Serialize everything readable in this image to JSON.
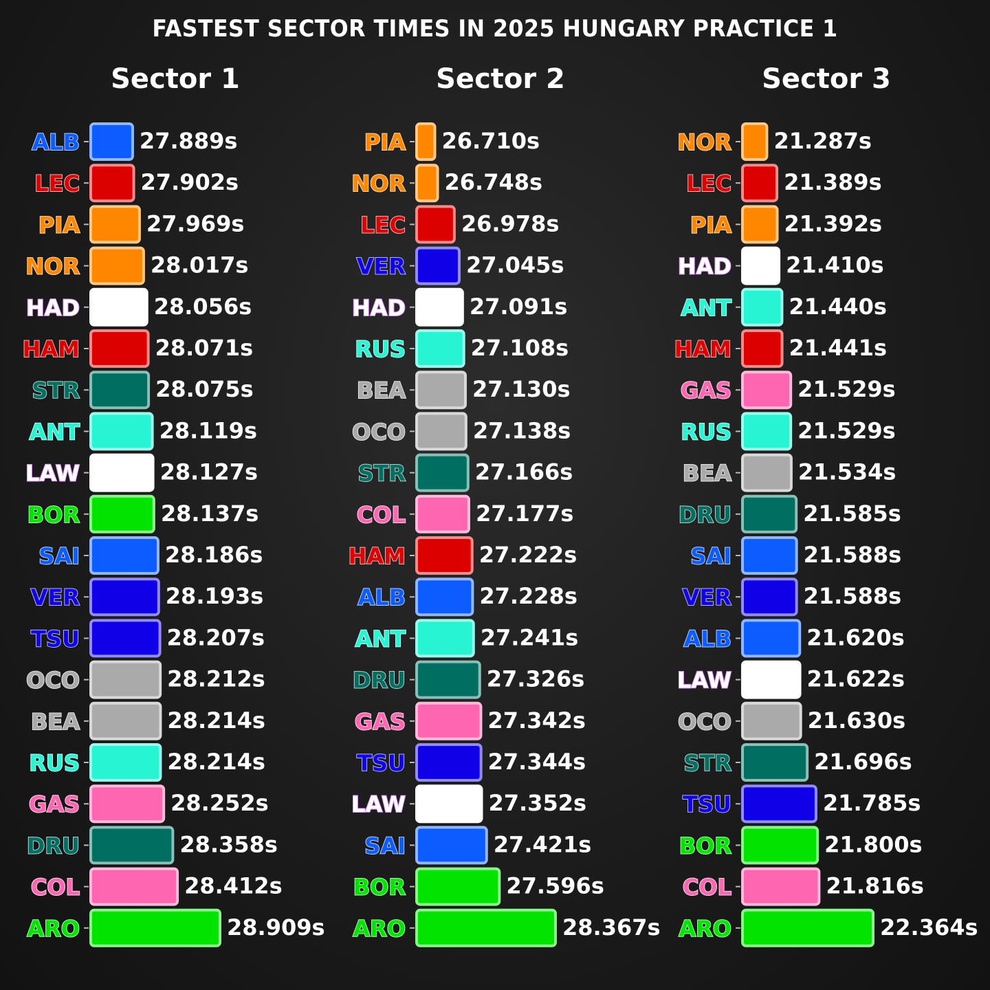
{
  "title": "FASTEST SECTOR TIMES IN 2025 HUNGARY PRACTICE 1",
  "colors": {
    "williams": "#0d5cff",
    "ferrari": "#dd0000",
    "mclaren": "#ff8700",
    "rb": "#ffffff",
    "aston": "#006e61",
    "mercedes": "#27f4d2",
    "sauber": "#00e400",
    "redbull": "#1000e8",
    "haas": "#aaaaaa",
    "alpine": "#ff66b2"
  },
  "chart_data": [
    {
      "type": "bar",
      "title": "Sector 1",
      "xlim": [
        27.4,
        28.909
      ],
      "categories": [
        "ALB",
        "LEC",
        "PIA",
        "NOR",
        "HAD",
        "HAM",
        "STR",
        "ANT",
        "LAW",
        "BOR",
        "SAI",
        "VER",
        "TSU",
        "OCO",
        "BEA",
        "RUS",
        "GAS",
        "DRU",
        "COL",
        "ARO"
      ],
      "values": [
        27.889,
        27.902,
        27.969,
        28.017,
        28.056,
        28.071,
        28.075,
        28.119,
        28.127,
        28.137,
        28.186,
        28.193,
        28.207,
        28.212,
        28.214,
        28.214,
        28.252,
        28.358,
        28.412,
        28.909
      ],
      "value_labels": [
        "27.889s",
        "27.902s",
        "27.969s",
        "28.017s",
        "28.056s",
        "28.071s",
        "28.075s",
        "28.119s",
        "28.127s",
        "28.137s",
        "28.186s",
        "28.193s",
        "28.207s",
        "28.212s",
        "28.214s",
        "28.214s",
        "28.252s",
        "28.358s",
        "28.412s",
        "28.909s"
      ],
      "teams": [
        "williams",
        "ferrari",
        "mclaren",
        "mclaren",
        "rb",
        "ferrari",
        "aston",
        "mercedes",
        "rb",
        "sauber",
        "williams",
        "redbull",
        "redbull",
        "haas",
        "haas",
        "mercedes",
        "alpine",
        "aston",
        "alpine",
        "sauber"
      ]
    },
    {
      "type": "bar",
      "title": "Sector 2",
      "xlim": [
        26.46,
        28.367
      ],
      "categories": [
        "PIA",
        "NOR",
        "LEC",
        "VER",
        "HAD",
        "RUS",
        "BEA",
        "OCO",
        "STR",
        "COL",
        "HAM",
        "ALB",
        "ANT",
        "DRU",
        "GAS",
        "TSU",
        "LAW",
        "SAI",
        "BOR",
        "ARO"
      ],
      "values": [
        26.71,
        26.748,
        26.978,
        27.045,
        27.091,
        27.108,
        27.13,
        27.138,
        27.166,
        27.177,
        27.222,
        27.228,
        27.241,
        27.326,
        27.342,
        27.344,
        27.352,
        27.421,
        27.596,
        28.367
      ],
      "value_labels": [
        "26.710s",
        "26.748s",
        "26.978s",
        "27.045s",
        "27.091s",
        "27.108s",
        "27.130s",
        "27.138s",
        "27.166s",
        "27.177s",
        "27.222s",
        "27.228s",
        "27.241s",
        "27.326s",
        "27.342s",
        "27.344s",
        "27.352s",
        "27.421s",
        "27.596s",
        "28.367s"
      ],
      "teams": [
        "mclaren",
        "mclaren",
        "ferrari",
        "redbull",
        "rb",
        "mercedes",
        "haas",
        "haas",
        "aston",
        "alpine",
        "ferrari",
        "williams",
        "mercedes",
        "aston",
        "alpine",
        "redbull",
        "rb",
        "williams",
        "sauber",
        "sauber"
      ]
    },
    {
      "type": "bar",
      "title": "Sector 3",
      "xlim": [
        21.04,
        22.364
      ],
      "categories": [
        "NOR",
        "LEC",
        "PIA",
        "HAD",
        "ANT",
        "HAM",
        "GAS",
        "RUS",
        "BEA",
        "DRU",
        "SAI",
        "VER",
        "ALB",
        "LAW",
        "OCO",
        "STR",
        "TSU",
        "BOR",
        "COL",
        "ARO"
      ],
      "values": [
        21.287,
        21.389,
        21.392,
        21.41,
        21.44,
        21.441,
        21.529,
        21.529,
        21.534,
        21.585,
        21.588,
        21.588,
        21.62,
        21.622,
        21.63,
        21.696,
        21.785,
        21.8,
        21.816,
        22.364
      ],
      "value_labels": [
        "21.287s",
        "21.389s",
        "21.392s",
        "21.410s",
        "21.440s",
        "21.441s",
        "21.529s",
        "21.529s",
        "21.534s",
        "21.585s",
        "21.588s",
        "21.588s",
        "21.620s",
        "21.622s",
        "21.630s",
        "21.696s",
        "21.785s",
        "21.800s",
        "21.816s",
        "22.364s"
      ],
      "teams": [
        "mclaren",
        "ferrari",
        "mclaren",
        "rb",
        "mercedes",
        "ferrari",
        "alpine",
        "mercedes",
        "haas",
        "aston",
        "williams",
        "redbull",
        "williams",
        "rb",
        "haas",
        "aston",
        "redbull",
        "sauber",
        "alpine",
        "sauber"
      ]
    }
  ]
}
